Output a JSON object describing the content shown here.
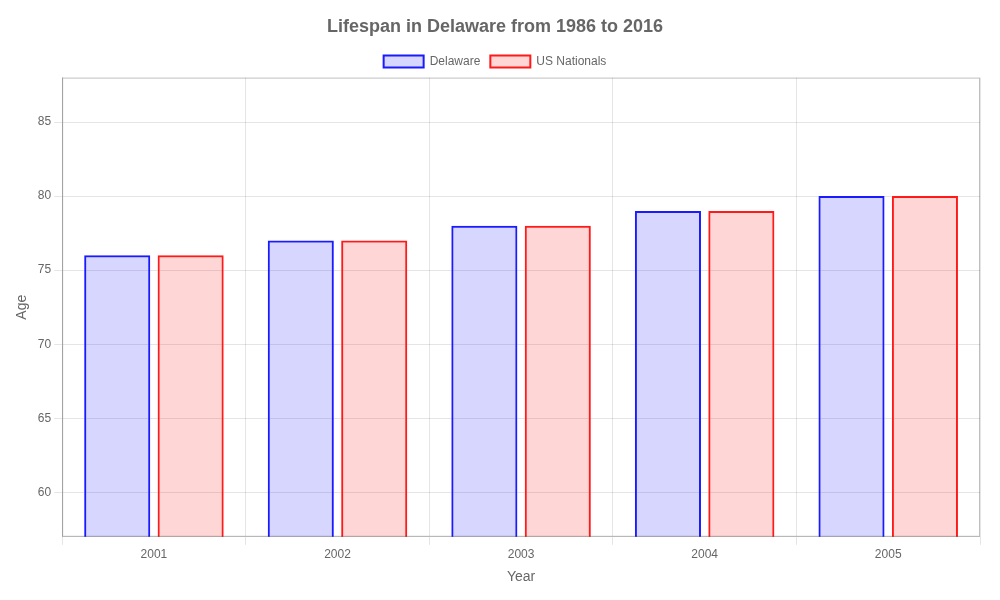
{
  "chart_data": {
    "type": "bar",
    "title": "Lifespan in Delaware from 1986 to 2016",
    "x_label": "Year",
    "y_label": "Age",
    "categories": [
      "2001",
      "2002",
      "2003",
      "2004",
      "2005"
    ],
    "series": [
      {
        "name": "Delaware",
        "color": "#1a1aff",
        "values": [
          76,
          77,
          78,
          79,
          80
        ]
      },
      {
        "name": "US Nationals",
        "color": "#ff1a1a",
        "values": [
          76,
          77,
          78,
          79,
          80
        ]
      }
    ],
    "ylim": [
      57,
      88
    ],
    "yticks": [
      60,
      65,
      70,
      75,
      80,
      85
    ],
    "grid": true,
    "legend": "top"
  }
}
